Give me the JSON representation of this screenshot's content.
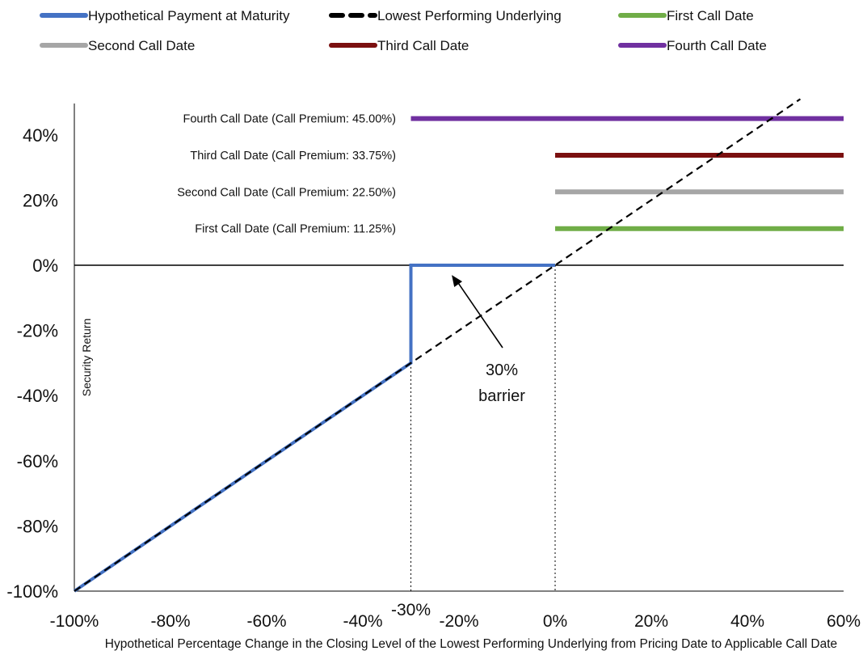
{
  "chart_data": {
    "type": "line",
    "xlabel": "Hypothetical Percentage Change in the Closing Level of the Lowest Performing Underlying from Pricing Date to Applicable Call Date",
    "ylabel": "Security Return",
    "xlim": [
      -100,
      60
    ],
    "ylim": [
      -100,
      50
    ],
    "x_ticks": [
      {
        "value": -100,
        "label": "-100%"
      },
      {
        "value": -80,
        "label": "-80%"
      },
      {
        "value": -60,
        "label": "-60%"
      },
      {
        "value": -40,
        "label": "-40%"
      },
      {
        "value": -30,
        "label": "-30%"
      },
      {
        "value": -20,
        "label": "-20%"
      },
      {
        "value": 0,
        "label": "0%"
      },
      {
        "value": 20,
        "label": "20%"
      },
      {
        "value": 40,
        "label": "40%"
      },
      {
        "value": 60,
        "label": "60%"
      }
    ],
    "y_ticks": [
      {
        "value": 40,
        "label": "40%"
      },
      {
        "value": 20,
        "label": "20%"
      },
      {
        "value": 0,
        "label": "0%"
      },
      {
        "value": -20,
        "label": "-20%"
      },
      {
        "value": -40,
        "label": "-40%"
      },
      {
        "value": -60,
        "label": "-60%"
      },
      {
        "value": -80,
        "label": "-80%"
      },
      {
        "value": -100,
        "label": "-100%"
      }
    ],
    "legend_position": "top",
    "grid": false,
    "series": [
      {
        "name": "Hypothetical Payment at Maturity",
        "color": "#4472C4",
        "style": "solid",
        "x": [
          -100,
          -30,
          -30,
          0
        ],
        "y": [
          -100,
          -30,
          0,
          0
        ]
      },
      {
        "name": "Lowest Performing Underlying",
        "color": "#000000",
        "style": "dashed",
        "x": [
          -100,
          51
        ],
        "y": [
          -100,
          51
        ]
      },
      {
        "name": "First Call Date",
        "color": "#70AD47",
        "style": "solid",
        "x": [
          0,
          60
        ],
        "y": [
          11.25,
          11.25
        ],
        "annotation": "First Call Date (Call Premium: 11.25%)"
      },
      {
        "name": "Second Call Date",
        "color": "#A6A6A6",
        "style": "solid",
        "x": [
          0,
          60
        ],
        "y": [
          22.5,
          22.5
        ],
        "annotation": "Second Call Date (Call Premium: 22.50%)"
      },
      {
        "name": "Third Call Date",
        "color": "#7B1010",
        "style": "solid",
        "x": [
          0,
          60
        ],
        "y": [
          33.75,
          33.75
        ],
        "annotation": "Third Call Date (Call Premium: 33.75%)"
      },
      {
        "name": "Fourth Call Date",
        "color": "#7030A0",
        "style": "solid",
        "x": [
          -30,
          60
        ],
        "y": [
          45,
          45
        ],
        "annotation": "Fourth Call Date (Call Premium: 45.00%)"
      }
    ],
    "reference_lines": [
      {
        "axis": "x",
        "value": -30,
        "style": "dotted"
      },
      {
        "axis": "x",
        "value": 0,
        "style": "dotted"
      }
    ],
    "barrier_annotation": {
      "lines": [
        "30%",
        "barrier"
      ],
      "arrow_to": {
        "x": -21.5,
        "y": -3
      }
    }
  }
}
